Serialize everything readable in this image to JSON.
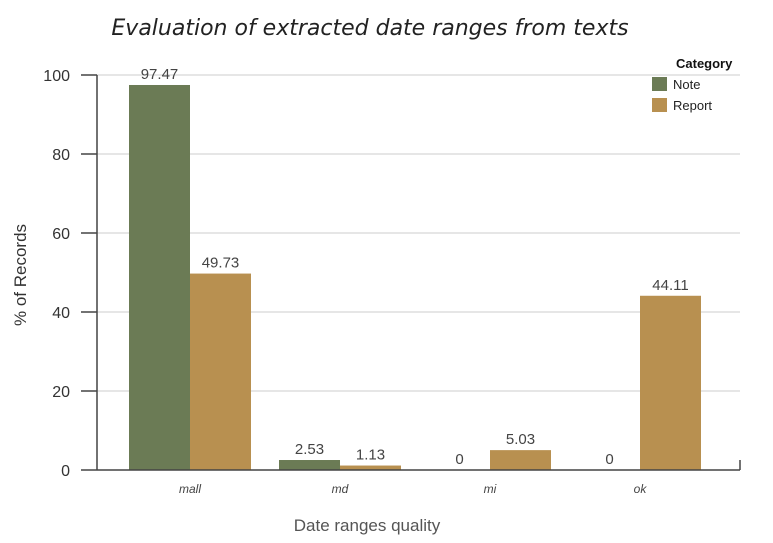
{
  "colors": {
    "note": "#6b7b55",
    "report": "#b89050",
    "grid": "#cccccc",
    "axis": "#444444"
  },
  "chart_data": {
    "type": "bar",
    "title": "Evaluation of extracted date ranges from texts",
    "xlabel": "Date ranges quality",
    "ylabel": "% of Records",
    "categories": [
      "mall",
      "md",
      "mi",
      "ok"
    ],
    "series": [
      {
        "name": "Note",
        "values": [
          97.47,
          2.53,
          0,
          0
        ]
      },
      {
        "name": "Report",
        "values": [
          49.73,
          1.13,
          5.03,
          44.11
        ]
      }
    ],
    "data_labels": [
      [
        "97.47",
        "2.53",
        "0",
        "0"
      ],
      [
        "49.73",
        "1.13",
        "5.03",
        "44.11"
      ]
    ],
    "ylim": [
      0,
      100
    ],
    "yticks": [
      "0",
      "20",
      "40",
      "60",
      "80",
      "100"
    ],
    "grid": true,
    "legend": {
      "title": "Category",
      "placement": "top-right"
    }
  }
}
